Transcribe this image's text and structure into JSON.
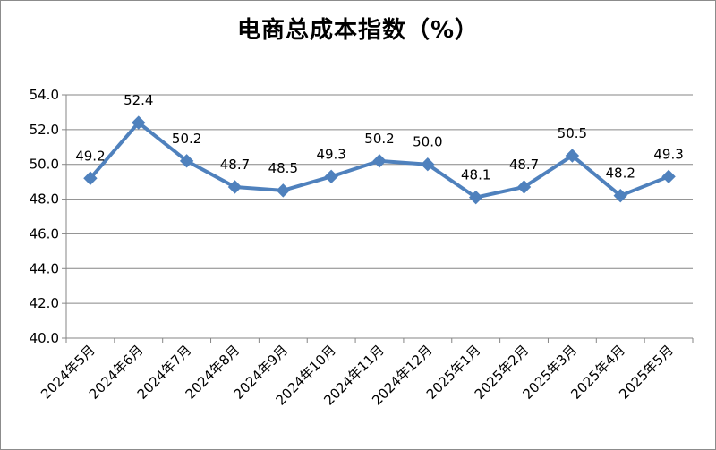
{
  "chart_data": {
    "type": "line",
    "title": "电商总成本指数（%）",
    "xlabel": "",
    "ylabel": "",
    "categories": [
      "2024年5月",
      "2024年6月",
      "2024年7月",
      "2024年8月",
      "2024年9月",
      "2024年10月",
      "2024年11月",
      "2024年12月",
      "2025年1月",
      "2025年2月",
      "2025年3月",
      "2025年4月",
      "2025年5月"
    ],
    "series": [
      {
        "values": [
          49.2,
          52.4,
          50.2,
          48.7,
          48.5,
          49.3,
          50.2,
          50.0,
          48.1,
          48.7,
          50.5,
          48.2,
          49.3
        ],
        "labels": [
          "49.2",
          "52.4",
          "50.2",
          "48.7",
          "48.5",
          "49.3",
          "50.2",
          "50.0",
          "48.1",
          "48.7",
          "50.5",
          "48.2",
          "49.3"
        ],
        "color": "#4f81bd",
        "marker": "diamond"
      }
    ],
    "ylim": [
      40.0,
      54.0
    ],
    "yticks": [
      "40.0",
      "42.0",
      "44.0",
      "46.0",
      "48.0",
      "50.0",
      "52.0",
      "54.0"
    ],
    "grid": true,
    "legend": "none"
  }
}
